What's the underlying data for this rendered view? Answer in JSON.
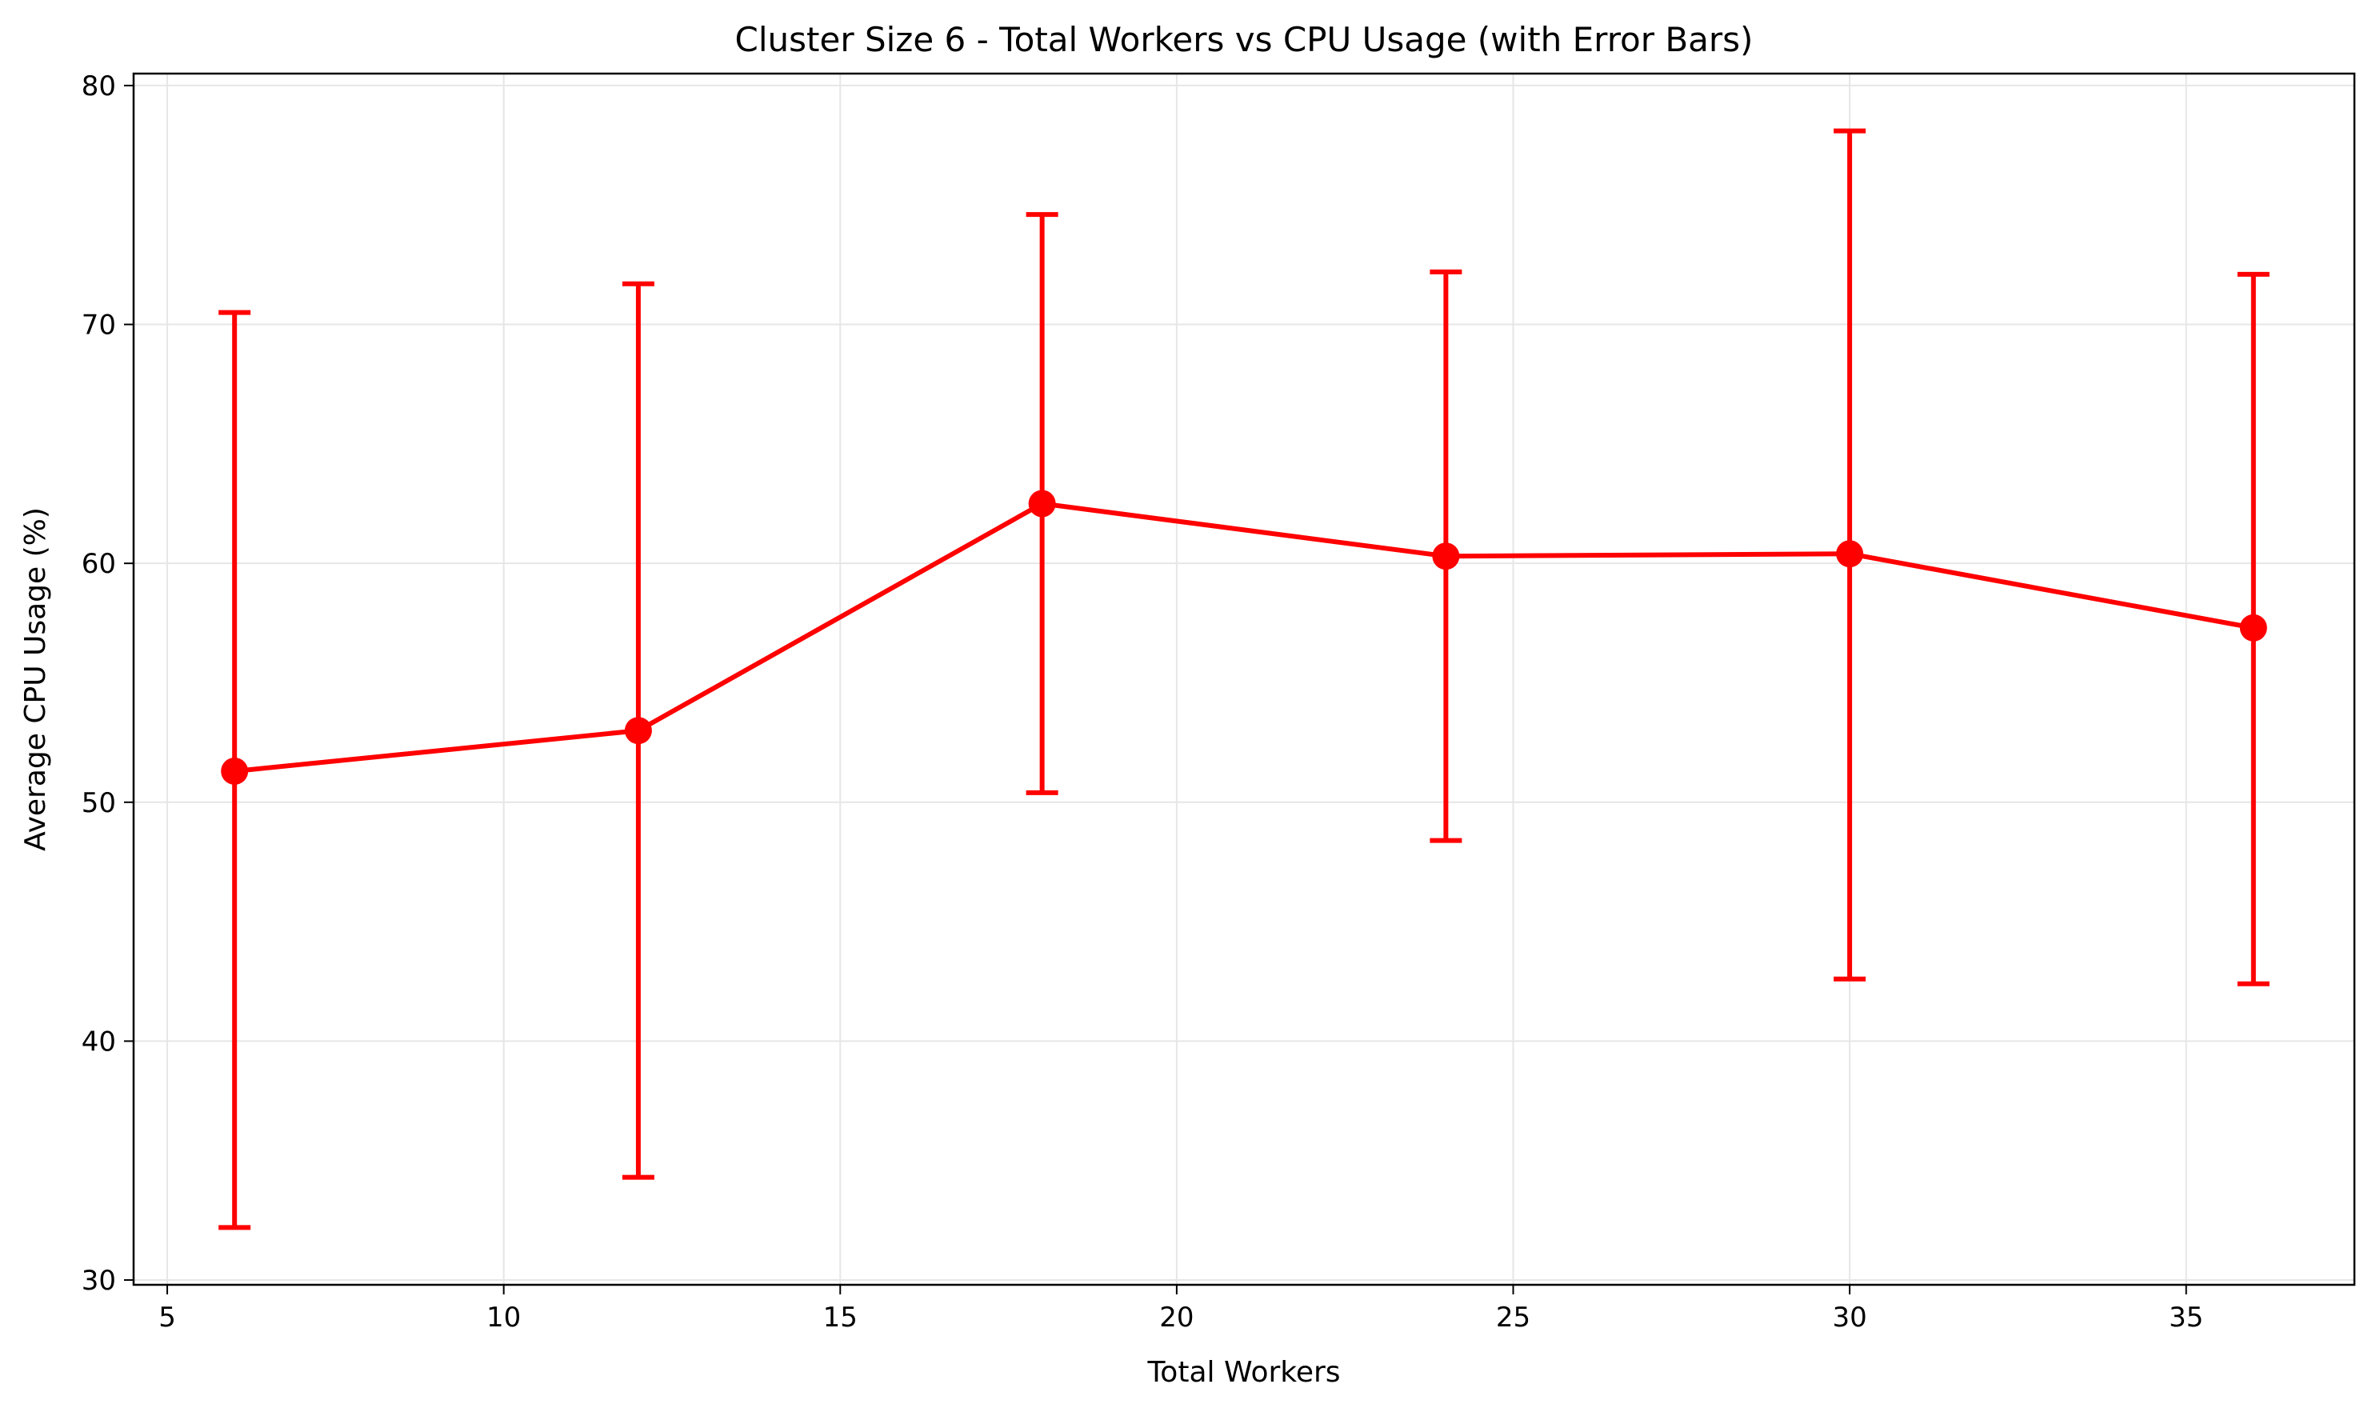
{
  "chart_data": {
    "type": "line",
    "title": "Cluster Size 6 - Total Workers vs CPU Usage (with Error Bars)",
    "xlabel": "Total Workers",
    "ylabel": "Average CPU Usage (%)",
    "xlim": [
      4.5,
      37.5
    ],
    "ylim": [
      29.8,
      80.5
    ],
    "xticks": [
      5,
      10,
      15,
      20,
      25,
      30,
      35
    ],
    "yticks": [
      30,
      40,
      50,
      60,
      70,
      80
    ],
    "grid": true,
    "color": "#ff0000",
    "marker": "circle",
    "error_bars": true,
    "series": [
      {
        "x": [
          6,
          12,
          18,
          24,
          30,
          36
        ],
        "y": [
          51.3,
          53.0,
          62.5,
          60.3,
          60.4,
          57.3
        ],
        "yerr_low": [
          32.2,
          34.3,
          50.4,
          48.4,
          42.6,
          42.4
        ],
        "yerr_high": [
          70.5,
          71.7,
          74.6,
          72.2,
          78.1,
          72.1
        ]
      }
    ]
  }
}
